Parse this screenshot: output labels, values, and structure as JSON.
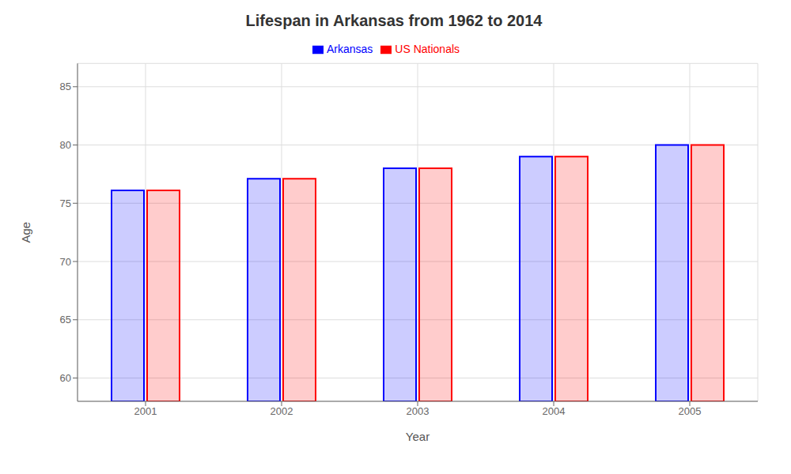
{
  "chart_data": {
    "type": "bar",
    "title": "Lifespan in Arkansas from 1962 to 2014",
    "x_label": "Year",
    "y_label": "Age",
    "categories": [
      "2001",
      "2002",
      "2003",
      "2004",
      "2005"
    ],
    "series": [
      {
        "name": "Arkansas",
        "color": "#0000ff",
        "values": [
          76.1,
          77.1,
          78.0,
          79.0,
          80.0
        ]
      },
      {
        "name": "US Nationals",
        "color": "#ff0000",
        "values": [
          76.1,
          77.1,
          78.0,
          79.0,
          80.0
        ]
      }
    ],
    "ylim": [
      58,
      87
    ],
    "yticks": [
      60,
      65,
      70,
      75,
      80,
      85
    ],
    "grid": true,
    "legend": "top"
  }
}
